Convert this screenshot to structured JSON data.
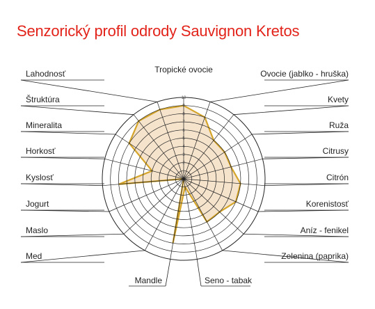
{
  "chart_data": {
    "type": "radar",
    "title": "Senzorický profil odrody Sauvignon Kretos",
    "scale": {
      "min": 0,
      "max": 10,
      "ticks": [
        "1",
        "2",
        "3",
        "4",
        "5",
        "6",
        "7",
        "8",
        "9",
        "10"
      ]
    },
    "axes": [
      "Tropické ovocie",
      "Ovocie (jablko - hruška)",
      "Kvety",
      "Ruža",
      "Citrusy",
      "Citrón",
      "Korenistosť",
      "Aníz - fenikel",
      "Zelenina (paprika)",
      "Seno - tabak",
      "Mandle",
      "Med",
      "Maslo",
      "Jogurt",
      "Kyslosť",
      "Horkosť",
      "Mineralita",
      "Štruktúra",
      "Lahodnosť"
    ],
    "series": [
      {
        "values": [
          9,
          8,
          6,
          6,
          6,
          7,
          7,
          6,
          6,
          1,
          8,
          0,
          0,
          0,
          8,
          4,
          8,
          9,
          9
        ]
      }
    ],
    "colors": {
      "title": "#e2231a",
      "series_line": "#d4a52a",
      "series_fill": "#f5e3cc",
      "grid": "#222222"
    }
  }
}
